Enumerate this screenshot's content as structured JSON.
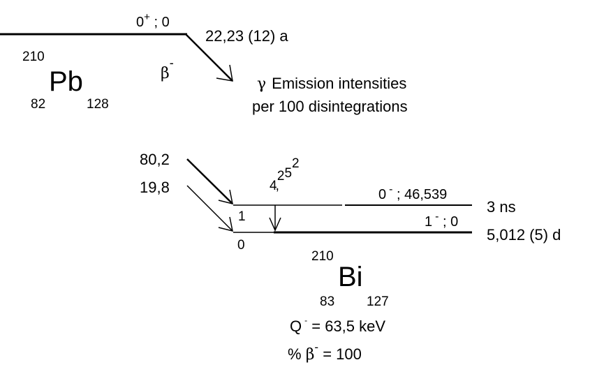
{
  "parent": {
    "mass_number": "210",
    "symbol": "Pb",
    "atomic_number": "82",
    "neutron_number": "128",
    "level_spin": "0",
    "level_parity": "+",
    "level_energy": "0",
    "half_life": "22,23 (12) a"
  },
  "decay": {
    "beta_symbol": "β",
    "beta_sign": "-"
  },
  "emission_note": {
    "gamma_symbol": "γ",
    "line1": "Emission intensities",
    "line2": "per 100 disintegrations"
  },
  "beta_branches": [
    {
      "intensity": "80,2"
    },
    {
      "intensity": "19,8"
    }
  ],
  "gamma_transition": {
    "intensity_base": "4",
    "intensity_exponent": "2",
    "intensity_base2": "5",
    "intensity_exponent2": "2"
  },
  "daughter_levels": [
    {
      "index": "1",
      "spin": "0",
      "parity": "-",
      "energy": "46,539",
      "half_life": "3 ns"
    },
    {
      "index": "0",
      "spin": "1",
      "parity": "-",
      "energy": "0",
      "half_life": "5,012 (5) d"
    }
  ],
  "daughter": {
    "mass_number": "210",
    "symbol": "Bi",
    "atomic_number": "83",
    "neutron_number": "127"
  },
  "summary": {
    "q_label": "Q",
    "q_superscript": "-",
    "q_value": " = 63,5 keV",
    "pct_label": "% ",
    "beta_symbol": "β",
    "beta_sign": "-",
    "pct_value": " = 100"
  }
}
